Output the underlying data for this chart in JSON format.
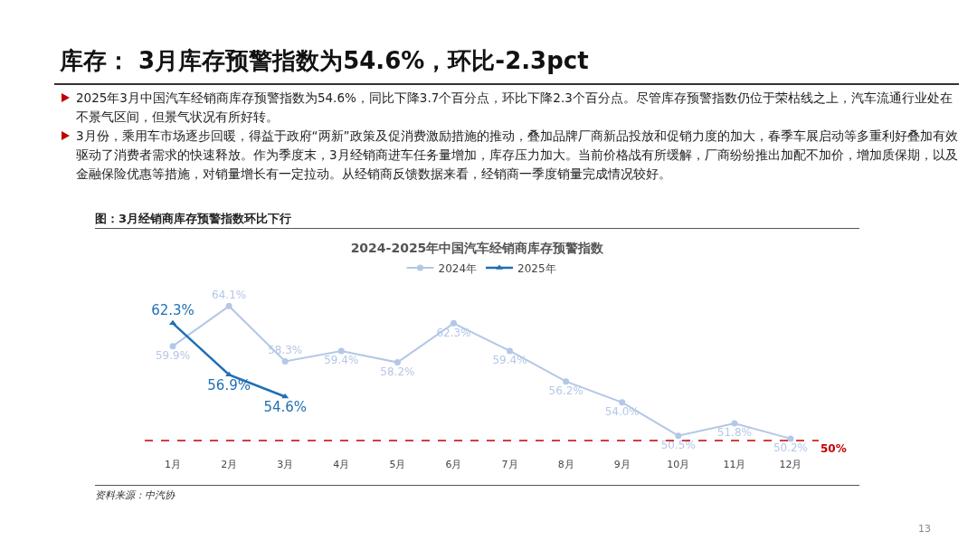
{
  "chart_data": {
    "type": "line",
    "title": "库存： 3月库存预警指数为54.6%，环比-2.3pct",
    "subtitle": "2024-2025年中国汽车经销商库存预警指数",
    "annotations": [
      "2025年3月中国汽车经销商库存预警指数为54.6%，同比下降3.7个百分点，环比下降2.3个百分点。尽管库存预警指数仍位于荣枯线之上，汽车流通行业处在不景气区间，但景气状况有所好转。",
      "3月份，乘用车市场逐步回暖，得益于政府“两新”政策及促消费激励措施的推动，叠加品牌厂商新品投放和促销力度的加大，春季车展启动等多重利好叠加有效驱动了消费者需求的快速释放。作为季度末，3月经销商进车任务量增加，库存压力加大。当前价格战有所缓解，厂商纷纷推出加配不加价，增加质保期，以及金融保险优惠等措施，对销量增长有一定拉动。从经销商反馈数据来看，经销商一季度销量完成情况较好。",
      "图：3月经销商库存预警指数环比下行",
      "资料来源：中汽协",
      "13"
    ],
    "categories": [
      "1月",
      "2月",
      "3月",
      "4月",
      "5月",
      "6月",
      "7月",
      "8月",
      "9月",
      "10月",
      "11月",
      "12月"
    ],
    "series": [
      {
        "name": "2024年",
        "color": "#b4c7e7",
        "marker": "circle",
        "values": [
          59.9,
          64.1,
          58.3,
          59.4,
          58.2,
          62.3,
          59.4,
          56.2,
          54.0,
          50.5,
          51.8,
          50.2
        ],
        "value_labels": [
          "59.9%",
          "64.1%",
          "58.3%",
          "59.4%",
          "58.2%",
          "62.3%",
          "59.4%",
          "56.2%",
          "54.0%",
          "50.5%",
          "51.8%",
          "50.2%"
        ]
      },
      {
        "name": "2025年",
        "color": "#1f6fb4",
        "marker": "triangle",
        "values": [
          62.3,
          56.9,
          54.6,
          null,
          null,
          null,
          null,
          null,
          null,
          null,
          null,
          null
        ],
        "value_labels": [
          "62.3%",
          "56.9%",
          "54.6%",
          null,
          null,
          null,
          null,
          null,
          null,
          null,
          null,
          null
        ]
      }
    ],
    "tick_labels": "x",
    "grid": false,
    "legend": "top",
    "ref_lines": [
      {
        "axis": "y",
        "value": 50,
        "label": "50%",
        "color": "#c00000",
        "line_style": "dashed"
      }
    ]
  }
}
